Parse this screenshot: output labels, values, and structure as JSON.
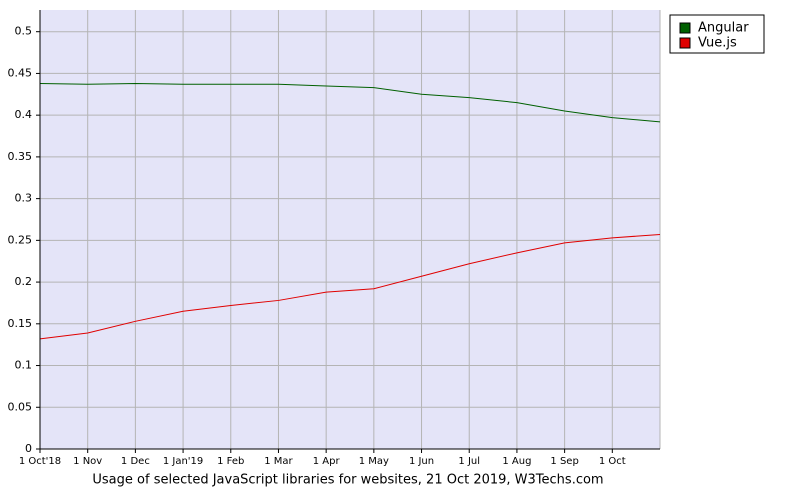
{
  "chart_data": {
    "type": "line",
    "caption": "Usage of selected JavaScript libraries for websites, 21 Oct 2019, W3Techs.com",
    "categories": [
      "1 Oct'18",
      "1 Nov",
      "1 Dec",
      "1 Jan'19",
      "1 Feb",
      "1 Mar",
      "1 Apr",
      "1 May",
      "1 Jun",
      "1 Jul",
      "1 Aug",
      "1 Sep",
      "1 Oct",
      null
    ],
    "series": [
      {
        "name": "Angular",
        "color": "#006000",
        "values": [
          0.438,
          0.437,
          0.438,
          0.437,
          0.437,
          0.437,
          0.435,
          0.433,
          0.425,
          0.421,
          0.415,
          0.405,
          0.397,
          0.392
        ]
      },
      {
        "name": "Vue.js",
        "color": "#e00000",
        "values": [
          0.132,
          0.139,
          0.153,
          0.165,
          0.172,
          0.178,
          0.188,
          0.192,
          0.207,
          0.222,
          0.235,
          0.247,
          0.253,
          0.257
        ]
      }
    ],
    "ylim": [
      0,
      0.526
    ],
    "yticks": [
      0,
      0.05,
      0.1,
      0.15,
      0.2,
      0.25,
      0.3,
      0.35,
      0.4,
      0.45,
      0.5
    ],
    "grid": true,
    "legend": "top-right"
  }
}
